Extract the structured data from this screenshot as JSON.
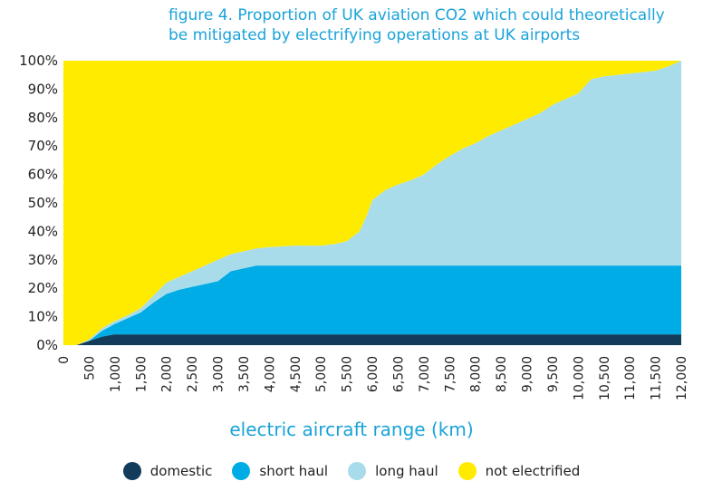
{
  "chart_data": {
    "type": "area",
    "title_line1": "figure 4. Proportion of UK aviation CO2 which could theoretically",
    "title_line2": "be mitigated by electrifying operations at UK airports",
    "xlabel": "electric aircraft range (km)",
    "ylabel": "",
    "xlim": [
      0,
      12000
    ],
    "ylim": [
      0,
      100
    ],
    "grid": false,
    "legend_position": "bottom",
    "x_ticks": [
      "0",
      "500",
      "1,000",
      "1,500",
      "2,000",
      "2,500",
      "3,000",
      "3,500",
      "4,000",
      "4,500",
      "5,000",
      "5,500",
      "6,000",
      "6,500",
      "7,000",
      "7,500",
      "8,000",
      "8,500",
      "9,000",
      "9,500",
      "10,000",
      "10,500",
      "11,000",
      "11,500",
      "12,000"
    ],
    "y_ticks": [
      "0%",
      "10%",
      "20%",
      "30%",
      "40%",
      "50%",
      "60%",
      "70%",
      "80%",
      "90%",
      "100%"
    ],
    "x": [
      0,
      250,
      500,
      750,
      900,
      1000,
      1250,
      1500,
      1750,
      2000,
      2250,
      2500,
      2750,
      3000,
      3250,
      3500,
      3750,
      4000,
      4500,
      5000,
      5250,
      5500,
      5750,
      5900,
      6000,
      6250,
      6500,
      6750,
      7000,
      7250,
      7500,
      7750,
      8000,
      8250,
      8500,
      8750,
      9000,
      9250,
      9500,
      9750,
      10000,
      10250,
      10500,
      10750,
      11000,
      11250,
      11500,
      11750,
      12000
    ],
    "series": [
      {
        "name": "domestic",
        "color": "#123c5a",
        "cumulative": [
          0,
          0,
          1.5,
          3.0,
          3.5,
          3.8,
          3.8,
          3.8,
          3.8,
          3.8,
          3.8,
          3.8,
          3.8,
          3.8,
          3.8,
          3.8,
          3.8,
          3.8,
          3.8,
          3.8,
          3.8,
          3.8,
          3.8,
          3.8,
          3.8,
          3.8,
          3.8,
          3.8,
          3.8,
          3.8,
          3.8,
          3.8,
          3.8,
          3.8,
          3.8,
          3.8,
          3.8,
          3.8,
          3.8,
          3.8,
          3.8,
          3.8,
          3.8,
          3.8,
          3.8,
          3.8,
          3.8,
          3.8,
          3.8
        ]
      },
      {
        "name": "short haul",
        "color": "#00ace6",
        "cumulative": [
          0,
          0,
          1.5,
          5.0,
          6.5,
          7.5,
          9.5,
          11.5,
          15.0,
          18.0,
          19.5,
          20.5,
          21.5,
          22.5,
          26.0,
          27.0,
          28.0,
          28.0,
          28.0,
          28.0,
          28.0,
          28.0,
          28.0,
          28.0,
          28.0,
          28.0,
          28.0,
          28.0,
          28.0,
          28.0,
          28.0,
          28.0,
          28.0,
          28.0,
          28.0,
          28.0,
          28.0,
          28.0,
          28.0,
          28.0,
          28.0,
          28.0,
          28.0,
          28.0,
          28.0,
          28.0,
          28.0,
          28.0,
          28.0
        ]
      },
      {
        "name": "long haul",
        "color": "#a9dcea",
        "cumulative": [
          0,
          0,
          2.0,
          6.0,
          7.5,
          8.5,
          10.5,
          13.0,
          17.5,
          22.0,
          24.0,
          26.0,
          28.0,
          30.0,
          32.0,
          33.0,
          34.0,
          34.5,
          35.0,
          35.0,
          35.5,
          36.5,
          40.0,
          46.0,
          51.0,
          54.5,
          56.5,
          58.0,
          60.0,
          63.5,
          66.5,
          69.0,
          71.0,
          73.5,
          75.5,
          77.5,
          79.5,
          81.5,
          84.5,
          86.5,
          88.5,
          93.5,
          94.5,
          95.0,
          95.5,
          96.0,
          96.5,
          98.0,
          100.0
        ]
      },
      {
        "name": "not electrified",
        "color": "#ffeb00",
        "cumulative": [
          100,
          100,
          100,
          100,
          100,
          100,
          100,
          100,
          100,
          100,
          100,
          100,
          100,
          100,
          100,
          100,
          100,
          100,
          100,
          100,
          100,
          100,
          100,
          100,
          100,
          100,
          100,
          100,
          100,
          100,
          100,
          100,
          100,
          100,
          100,
          100,
          100,
          100,
          100,
          100,
          100,
          100,
          100,
          100,
          100,
          100,
          100,
          100,
          100
        ]
      }
    ]
  }
}
